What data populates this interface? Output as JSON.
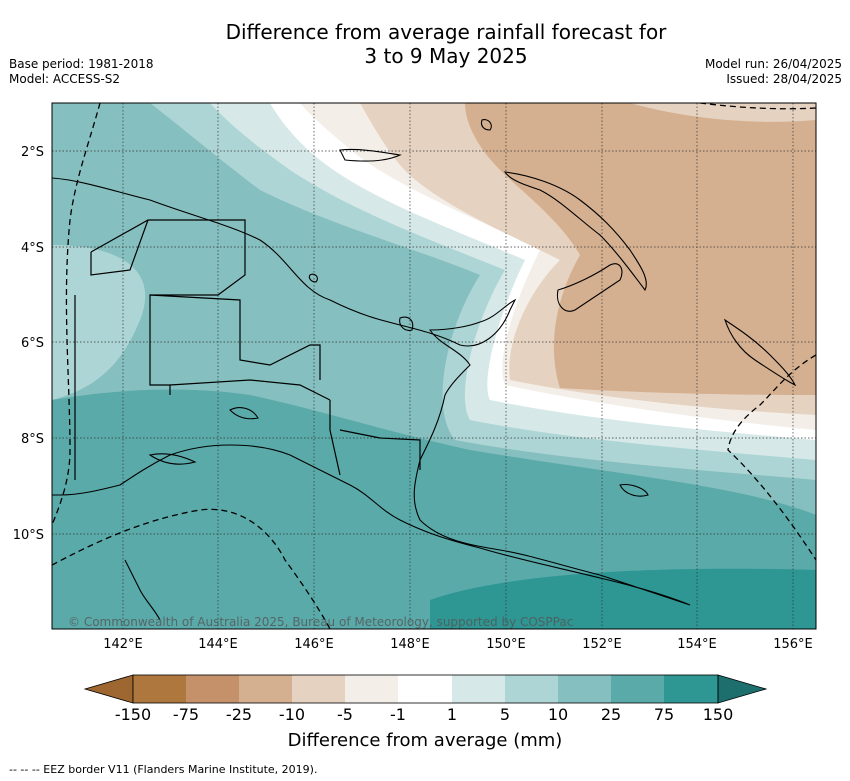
{
  "header": {
    "title_line1": "Difference from average rainfall forecast for",
    "title_line2": "3 to 9 May 2025",
    "base_period": "Base period: 1981-2018",
    "model": "Model: ACCESS-S2",
    "model_run": "Model run: 26/04/2025",
    "issued": "Issued: 28/04/2025"
  },
  "map": {
    "lat_labels": [
      "2°S",
      "4°S",
      "6°S",
      "8°S",
      "10°S"
    ],
    "lon_labels": [
      "142°E",
      "144°E",
      "146°E",
      "148°E",
      "150°E",
      "152°E",
      "154°E",
      "156°E"
    ],
    "copyright": "© Commonwealth of Australia 2025, Bureau of Meteorology, supported by COSPPac"
  },
  "colorbar": {
    "title": "Difference from average (mm)",
    "ticks": [
      "-150",
      "-75",
      "-25",
      "-10",
      "-5",
      "-1",
      "1",
      "5",
      "10",
      "25",
      "75",
      "150"
    ],
    "colors": [
      "#9e6631",
      "#ae773e",
      "#c4916a",
      "#d4b090",
      "#e6d2c0",
      "#f3eee8",
      "#ffffff",
      "#d6e9e8",
      "#aed5d5",
      "#86bfbf",
      "#5aaaaa",
      "#2e9693",
      "#1d6f6d"
    ]
  },
  "footer": {
    "legend_text": "--  --  -- EEZ border V11 (Flanders Marine Institute, 2019)."
  }
}
